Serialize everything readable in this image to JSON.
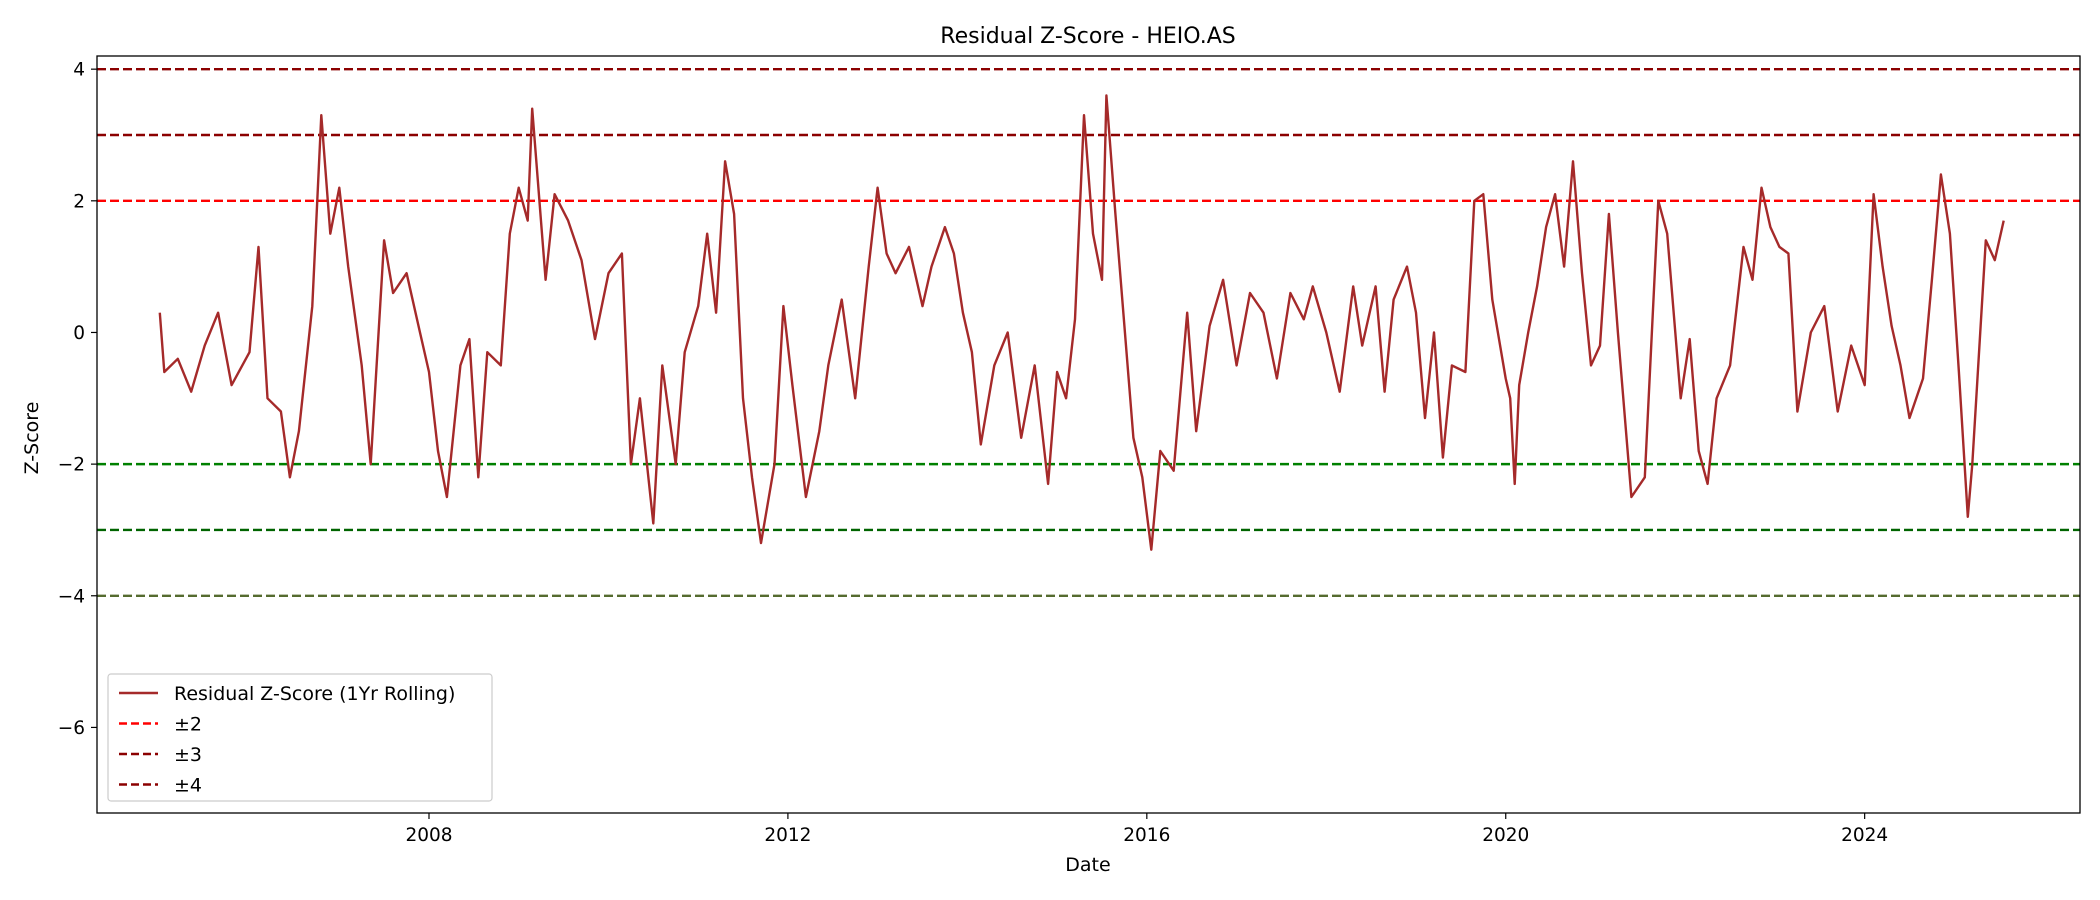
{
  "chart_data": {
    "type": "line",
    "title": "Residual Z-Score - HEIO.AS",
    "xlabel": "Date",
    "ylabel": "Z-Score",
    "xlim": [
      2004.3,
      2026.4
    ],
    "ylim": [
      -7.3,
      4.2
    ],
    "x_ticks": [
      2008,
      2012,
      2016,
      2020,
      2024
    ],
    "x_tick_labels": [
      "2008",
      "2012",
      "2016",
      "2020",
      "2024"
    ],
    "y_ticks": [
      4,
      2,
      0,
      -2,
      -4,
      -6
    ],
    "y_tick_labels": [
      "4",
      "2",
      "0",
      "−2",
      "−4",
      "−6"
    ],
    "grid": false,
    "legend_position": "lower-left",
    "legend": [
      {
        "label": "Residual Z-Score (1Yr Rolling)",
        "style": "solid",
        "color": "#a52a2a"
      },
      {
        "label": "±2",
        "style": "dashed",
        "color": "#ff0000"
      },
      {
        "label": "±3",
        "style": "dashed",
        "color": "#8b0000"
      },
      {
        "label": "±4",
        "style": "dashed",
        "color": "#8b0000"
      }
    ],
    "hlines": [
      {
        "y": 4,
        "color": "#8b0000",
        "style": "dashed"
      },
      {
        "y": 3,
        "color": "#8b0000",
        "style": "dashed"
      },
      {
        "y": 2,
        "color": "#ff0000",
        "style": "dashed"
      },
      {
        "y": -2,
        "color": "#008000",
        "style": "dashed"
      },
      {
        "y": -3,
        "color": "#006400",
        "style": "dashed"
      },
      {
        "y": -4,
        "color": "#556b2f",
        "style": "dashed"
      }
    ],
    "series": [
      {
        "name": "Residual Z-Score (1Yr Rolling)",
        "color": "#a52a2a",
        "points": [
          [
            2005.0,
            0.3
          ],
          [
            2005.05,
            -0.6
          ],
          [
            2005.2,
            -0.4
          ],
          [
            2005.35,
            -0.9
          ],
          [
            2005.5,
            -0.2
          ],
          [
            2005.65,
            0.3
          ],
          [
            2005.8,
            -0.8
          ],
          [
            2006.0,
            -0.3
          ],
          [
            2006.1,
            1.3
          ],
          [
            2006.2,
            -1.0
          ],
          [
            2006.35,
            -1.2
          ],
          [
            2006.45,
            -2.2
          ],
          [
            2006.55,
            -1.5
          ],
          [
            2006.7,
            0.4
          ],
          [
            2006.8,
            3.3
          ],
          [
            2006.9,
            1.5
          ],
          [
            2007.0,
            2.2
          ],
          [
            2007.1,
            1.0
          ],
          [
            2007.25,
            -0.5
          ],
          [
            2007.35,
            -2.0
          ],
          [
            2007.5,
            1.4
          ],
          [
            2007.6,
            0.6
          ],
          [
            2007.75,
            0.9
          ],
          [
            2007.9,
            0.0
          ],
          [
            2008.0,
            -0.6
          ],
          [
            2008.1,
            -1.8
          ],
          [
            2008.2,
            -2.5
          ],
          [
            2008.35,
            -0.5
          ],
          [
            2008.45,
            -0.1
          ],
          [
            2008.55,
            -2.2
          ],
          [
            2008.65,
            -0.3
          ],
          [
            2008.8,
            -0.5
          ],
          [
            2008.9,
            1.5
          ],
          [
            2009.0,
            2.2
          ],
          [
            2009.1,
            1.7
          ],
          [
            2009.15,
            3.4
          ],
          [
            2009.3,
            0.8
          ],
          [
            2009.4,
            2.1
          ],
          [
            2009.55,
            1.7
          ],
          [
            2009.7,
            1.1
          ],
          [
            2009.85,
            -0.1
          ],
          [
            2010.0,
            0.9
          ],
          [
            2010.15,
            1.2
          ],
          [
            2010.25,
            -2.0
          ],
          [
            2010.35,
            -1.0
          ],
          [
            2010.5,
            -2.9
          ],
          [
            2010.6,
            -0.5
          ],
          [
            2010.75,
            -2.0
          ],
          [
            2010.85,
            -0.3
          ],
          [
            2011.0,
            0.4
          ],
          [
            2011.1,
            1.5
          ],
          [
            2011.2,
            0.3
          ],
          [
            2011.3,
            2.6
          ],
          [
            2011.4,
            1.8
          ],
          [
            2011.5,
            -1.0
          ],
          [
            2011.6,
            -2.2
          ],
          [
            2011.7,
            -3.2
          ],
          [
            2011.85,
            -2.0
          ],
          [
            2011.95,
            0.4
          ],
          [
            2012.05,
            -0.8
          ],
          [
            2012.2,
            -2.5
          ],
          [
            2012.35,
            -1.5
          ],
          [
            2012.45,
            -0.5
          ],
          [
            2012.6,
            0.5
          ],
          [
            2012.75,
            -1.0
          ],
          [
            2012.9,
            1.0
          ],
          [
            2013.0,
            2.2
          ],
          [
            2013.1,
            1.2
          ],
          [
            2013.2,
            0.9
          ],
          [
            2013.35,
            1.3
          ],
          [
            2013.5,
            0.4
          ],
          [
            2013.6,
            1.0
          ],
          [
            2013.75,
            1.6
          ],
          [
            2013.85,
            1.2
          ],
          [
            2013.95,
            0.3
          ],
          [
            2014.05,
            -0.3
          ],
          [
            2014.15,
            -1.7
          ],
          [
            2014.3,
            -0.5
          ],
          [
            2014.45,
            0.0
          ],
          [
            2014.6,
            -1.6
          ],
          [
            2014.75,
            -0.5
          ],
          [
            2014.9,
            -2.3
          ],
          [
            2015.0,
            -0.6
          ],
          [
            2015.1,
            -1.0
          ],
          [
            2015.2,
            0.2
          ],
          [
            2015.3,
            3.3
          ],
          [
            2015.4,
            1.5
          ],
          [
            2015.5,
            0.8
          ],
          [
            2015.55,
            3.6
          ],
          [
            2015.65,
            1.8
          ],
          [
            2015.75,
            0.1
          ],
          [
            2015.85,
            -1.6
          ],
          [
            2015.95,
            -2.2
          ],
          [
            2016.05,
            -3.3
          ],
          [
            2016.15,
            -1.8
          ],
          [
            2016.3,
            -2.1
          ],
          [
            2016.45,
            0.3
          ],
          [
            2016.55,
            -1.5
          ],
          [
            2016.7,
            0.1
          ],
          [
            2016.85,
            0.8
          ],
          [
            2017.0,
            -0.5
          ],
          [
            2017.15,
            0.6
          ],
          [
            2017.3,
            0.3
          ],
          [
            2017.45,
            -0.7
          ],
          [
            2017.6,
            0.6
          ],
          [
            2017.75,
            0.2
          ],
          [
            2017.85,
            0.7
          ],
          [
            2018.0,
            0.0
          ],
          [
            2018.15,
            -0.9
          ],
          [
            2018.3,
            0.7
          ],
          [
            2018.4,
            -0.2
          ],
          [
            2018.55,
            0.7
          ],
          [
            2018.65,
            -0.9
          ],
          [
            2018.75,
            0.5
          ],
          [
            2018.9,
            1.0
          ],
          [
            2019.0,
            0.3
          ],
          [
            2019.1,
            -1.3
          ],
          [
            2019.2,
            0.0
          ],
          [
            2019.3,
            -1.9
          ],
          [
            2019.4,
            -0.5
          ],
          [
            2019.55,
            -0.6
          ],
          [
            2019.65,
            2.0
          ],
          [
            2019.75,
            2.1
          ],
          [
            2019.85,
            0.5
          ],
          [
            2020.0,
            -0.7
          ],
          [
            2020.05,
            -1.0
          ],
          [
            2020.1,
            -2.3
          ],
          [
            2020.15,
            -0.8
          ],
          [
            2020.25,
            0.0
          ],
          [
            2020.35,
            0.7
          ],
          [
            2020.45,
            1.6
          ],
          [
            2020.55,
            2.1
          ],
          [
            2020.65,
            1.0
          ],
          [
            2020.75,
            2.6
          ],
          [
            2020.85,
            0.9
          ],
          [
            2020.95,
            -0.5
          ],
          [
            2021.05,
            -0.2
          ],
          [
            2021.15,
            1.8
          ],
          [
            2021.25,
            0.0
          ],
          [
            2021.4,
            -2.5
          ],
          [
            2021.55,
            -2.2
          ],
          [
            2021.7,
            2.0
          ],
          [
            2021.8,
            1.5
          ],
          [
            2021.95,
            -1.0
          ],
          [
            2022.05,
            -0.1
          ],
          [
            2022.15,
            -1.8
          ],
          [
            2022.25,
            -2.3
          ],
          [
            2022.35,
            -1.0
          ],
          [
            2022.5,
            -0.5
          ],
          [
            2022.65,
            1.3
          ],
          [
            2022.75,
            0.8
          ],
          [
            2022.85,
            2.2
          ],
          [
            2022.95,
            1.6
          ],
          [
            2023.05,
            1.3
          ],
          [
            2023.15,
            1.2
          ],
          [
            2023.25,
            -1.2
          ],
          [
            2023.4,
            0.0
          ],
          [
            2023.55,
            0.4
          ],
          [
            2023.7,
            -1.2
          ],
          [
            2023.85,
            -0.2
          ],
          [
            2024.0,
            -0.8
          ],
          [
            2024.1,
            2.1
          ],
          [
            2024.2,
            1.0
          ],
          [
            2024.3,
            0.1
          ],
          [
            2024.4,
            -0.5
          ],
          [
            2024.5,
            -1.3
          ],
          [
            2024.65,
            -0.7
          ],
          [
            2024.75,
            0.8
          ],
          [
            2024.85,
            2.4
          ],
          [
            2024.95,
            1.5
          ],
          [
            2025.05,
            -0.6
          ],
          [
            2025.15,
            -2.8
          ],
          [
            2025.2,
            -2.0
          ],
          [
            2025.35,
            1.4
          ],
          [
            2025.45,
            1.1
          ],
          [
            2025.55,
            1.7
          ]
        ]
      }
    ]
  }
}
